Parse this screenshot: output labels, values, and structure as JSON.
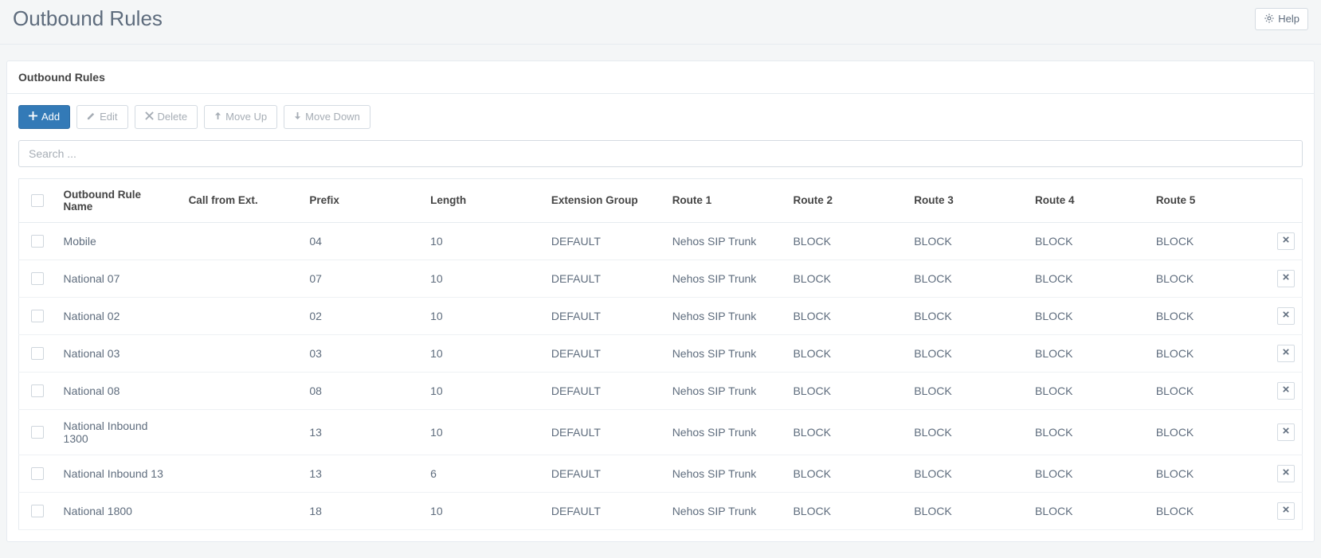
{
  "header": {
    "title": "Outbound Rules",
    "help_label": "Help"
  },
  "panel": {
    "heading": "Outbound Rules"
  },
  "toolbar": {
    "add_label": "Add",
    "edit_label": "Edit",
    "delete_label": "Delete",
    "move_up_label": "Move Up",
    "move_down_label": "Move Down"
  },
  "search": {
    "placeholder": "Search ..."
  },
  "table": {
    "columns": {
      "name": "Outbound Rule Name",
      "call_from_ext": "Call from Ext.",
      "prefix": "Prefix",
      "length": "Length",
      "extension_group": "Extension Group",
      "route1": "Route 1",
      "route2": "Route 2",
      "route3": "Route 3",
      "route4": "Route 4",
      "route5": "Route 5"
    },
    "rows": [
      {
        "name": "Mobile",
        "call_from_ext": "",
        "prefix": "04",
        "length": "10",
        "extension_group": "DEFAULT",
        "route1": "Nehos SIP Trunk",
        "route2": "BLOCK",
        "route3": "BLOCK",
        "route4": "BLOCK",
        "route5": "BLOCK"
      },
      {
        "name": "National 07",
        "call_from_ext": "",
        "prefix": "07",
        "length": "10",
        "extension_group": "DEFAULT",
        "route1": "Nehos SIP Trunk",
        "route2": "BLOCK",
        "route3": "BLOCK",
        "route4": "BLOCK",
        "route5": "BLOCK"
      },
      {
        "name": "National 02",
        "call_from_ext": "",
        "prefix": "02",
        "length": "10",
        "extension_group": "DEFAULT",
        "route1": "Nehos SIP Trunk",
        "route2": "BLOCK",
        "route3": "BLOCK",
        "route4": "BLOCK",
        "route5": "BLOCK"
      },
      {
        "name": "National 03",
        "call_from_ext": "",
        "prefix": "03",
        "length": "10",
        "extension_group": "DEFAULT",
        "route1": "Nehos SIP Trunk",
        "route2": "BLOCK",
        "route3": "BLOCK",
        "route4": "BLOCK",
        "route5": "BLOCK"
      },
      {
        "name": "National 08",
        "call_from_ext": "",
        "prefix": "08",
        "length": "10",
        "extension_group": "DEFAULT",
        "route1": "Nehos SIP Trunk",
        "route2": "BLOCK",
        "route3": "BLOCK",
        "route4": "BLOCK",
        "route5": "BLOCK"
      },
      {
        "name": "National Inbound 1300",
        "call_from_ext": "",
        "prefix": "13",
        "length": "10",
        "extension_group": "DEFAULT",
        "route1": "Nehos SIP Trunk",
        "route2": "BLOCK",
        "route3": "BLOCK",
        "route4": "BLOCK",
        "route5": "BLOCK"
      },
      {
        "name": "National Inbound 13",
        "call_from_ext": "",
        "prefix": "13",
        "length": "6",
        "extension_group": "DEFAULT",
        "route1": "Nehos SIP Trunk",
        "route2": "BLOCK",
        "route3": "BLOCK",
        "route4": "BLOCK",
        "route5": "BLOCK"
      },
      {
        "name": "National 1800",
        "call_from_ext": "",
        "prefix": "18",
        "length": "10",
        "extension_group": "DEFAULT",
        "route1": "Nehos SIP Trunk",
        "route2": "BLOCK",
        "route3": "BLOCK",
        "route4": "BLOCK",
        "route5": "BLOCK"
      }
    ]
  }
}
